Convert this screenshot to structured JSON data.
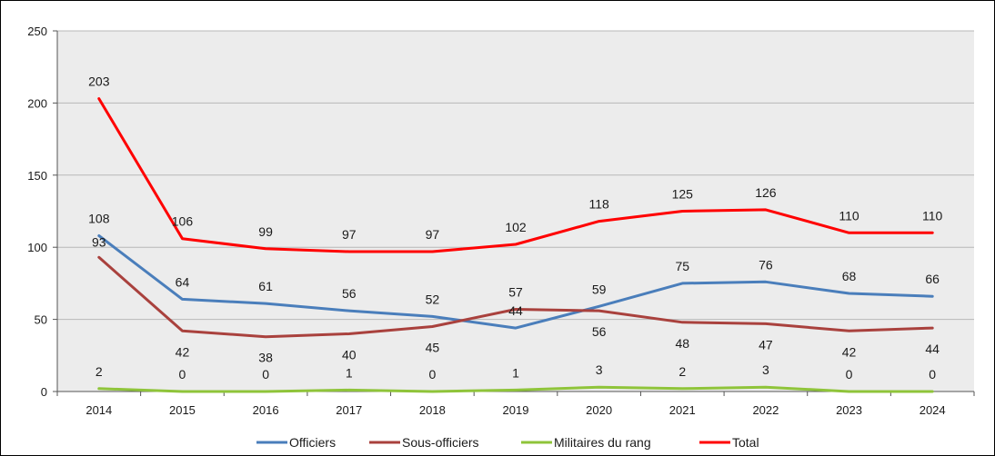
{
  "chart_data": {
    "type": "line",
    "title": "",
    "xlabel": "",
    "ylabel": "",
    "categories": [
      "2014",
      "2015",
      "2016",
      "2017",
      "2018",
      "2019",
      "2020",
      "2021",
      "2022",
      "2023",
      "2024"
    ],
    "ylim": [
      0,
      250
    ],
    "yticks": [
      0,
      50,
      100,
      150,
      200,
      250
    ],
    "grid": true,
    "legend_position": "bottom",
    "plot_background": "#ececec",
    "series": [
      {
        "name": "Officiers",
        "color": "#4a7ebb",
        "values": [
          108,
          64,
          61,
          56,
          52,
          44,
          59,
          75,
          76,
          68,
          66
        ],
        "labels": [
          "108",
          "64",
          "61",
          "56",
          "52",
          "44",
          "59",
          "75",
          "76",
          "68",
          "66"
        ]
      },
      {
        "name": "Sous-officiers",
        "color": "#a9413d",
        "values": [
          93,
          42,
          38,
          40,
          45,
          57,
          56,
          48,
          47,
          42,
          44
        ],
        "labels": [
          "93",
          "42",
          "38",
          "40",
          "45",
          "57",
          "56",
          "48",
          "47",
          "42",
          "44"
        ]
      },
      {
        "name": "Militaires du rang",
        "color": "#8fc43a",
        "values": [
          2,
          0,
          0,
          1,
          0,
          1,
          3,
          2,
          3,
          0,
          0
        ],
        "labels": [
          "2",
          "0",
          "0",
          "1",
          "0",
          "1",
          "3",
          "2",
          "3",
          "0",
          "0"
        ]
      },
      {
        "name": "Total",
        "color": "#ff0000",
        "values": [
          203,
          106,
          99,
          97,
          97,
          102,
          118,
          125,
          126,
          110,
          110
        ],
        "labels": [
          "203",
          "106",
          "99",
          "97",
          "97",
          "102",
          "118",
          "125",
          "126",
          "110",
          "110"
        ]
      }
    ]
  }
}
